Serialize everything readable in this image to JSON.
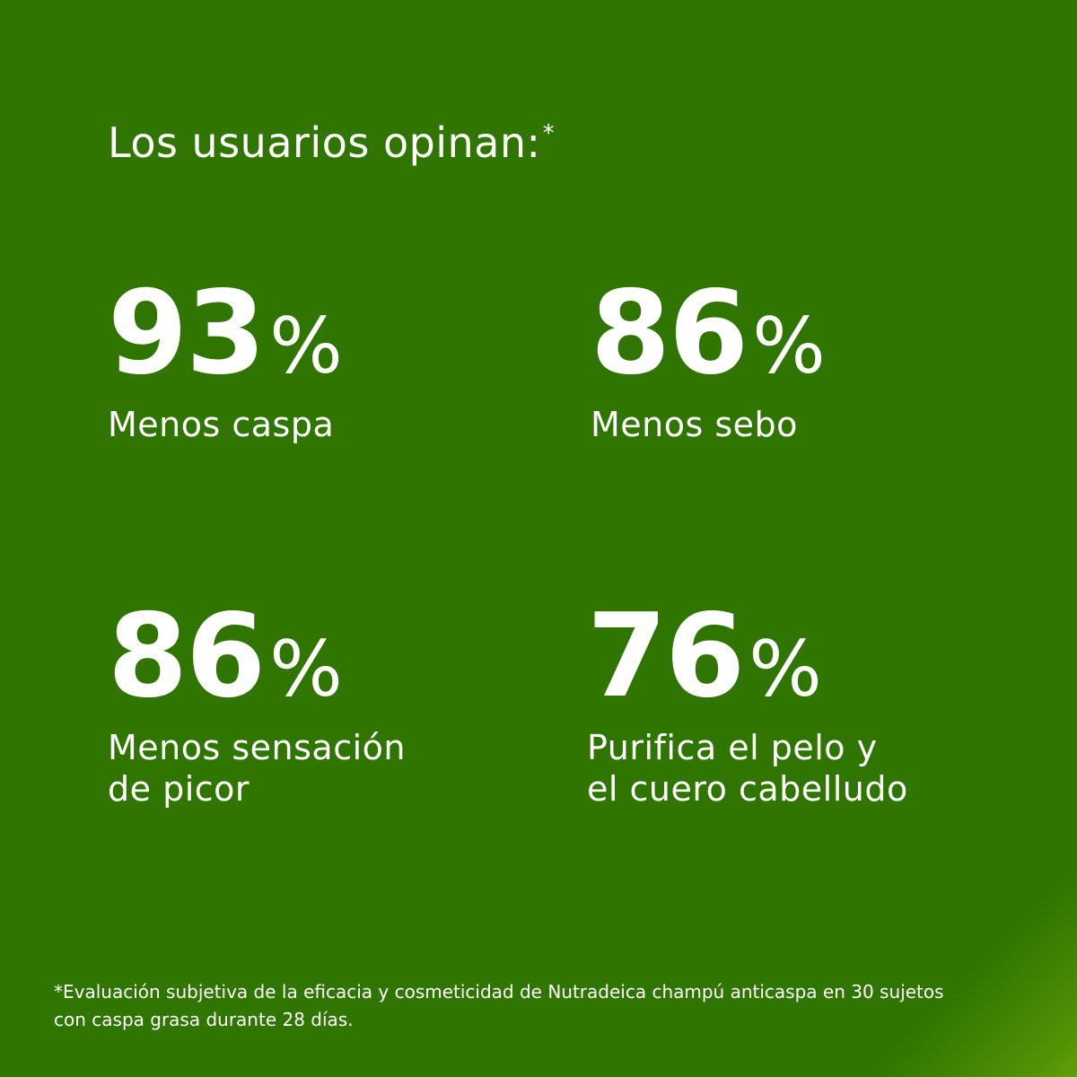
{
  "colors": {
    "background": "#2f7500",
    "text": "#ffffff",
    "corner_accent": "#62a00a"
  },
  "heading": {
    "text": "Los usuarios opinan:",
    "mark": "*"
  },
  "stats": [
    {
      "number": "93",
      "unit": "%",
      "label": "Menos caspa"
    },
    {
      "number": "86",
      "unit": "%",
      "label": "Menos sebo"
    },
    {
      "number": "86",
      "unit": "%",
      "label": "Menos sensación\nde picor"
    },
    {
      "number": "76",
      "unit": "%",
      "label": "Purifica el pelo y\nel cuero cabelludo"
    }
  ],
  "footnote": "*Evaluación subjetiva de la eficacia y cosmeticidad de Nutradeica champú anticaspa en 30 sujetos\ncon caspa grasa durante 28 días."
}
